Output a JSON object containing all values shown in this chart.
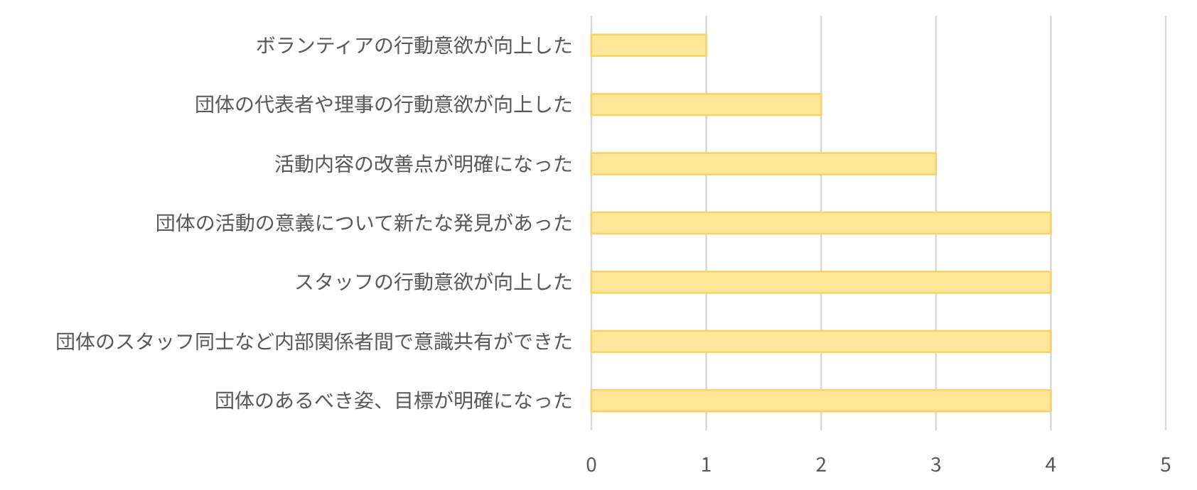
{
  "chart_data": {
    "type": "bar",
    "orientation": "horizontal",
    "categories": [
      "ボランティアの行動意欲が向上した",
      "団体の代表者や理事の行動意欲が向上した",
      "活動内容の改善点が明確になった",
      "団体の活動の意義について新たな発見があった",
      "スタッフの行動意欲が向上した",
      "団体のスタッフ同士など内部関係者間で意識共有ができた",
      "団体のあるべき姿、目標が明確になった"
    ],
    "values": [
      1,
      2,
      3,
      4,
      4,
      4,
      4
    ],
    "color": "#ffe699",
    "xlim": [
      0,
      5
    ],
    "xticks": [
      0,
      1,
      2,
      3,
      4,
      5
    ],
    "grid": "x"
  }
}
